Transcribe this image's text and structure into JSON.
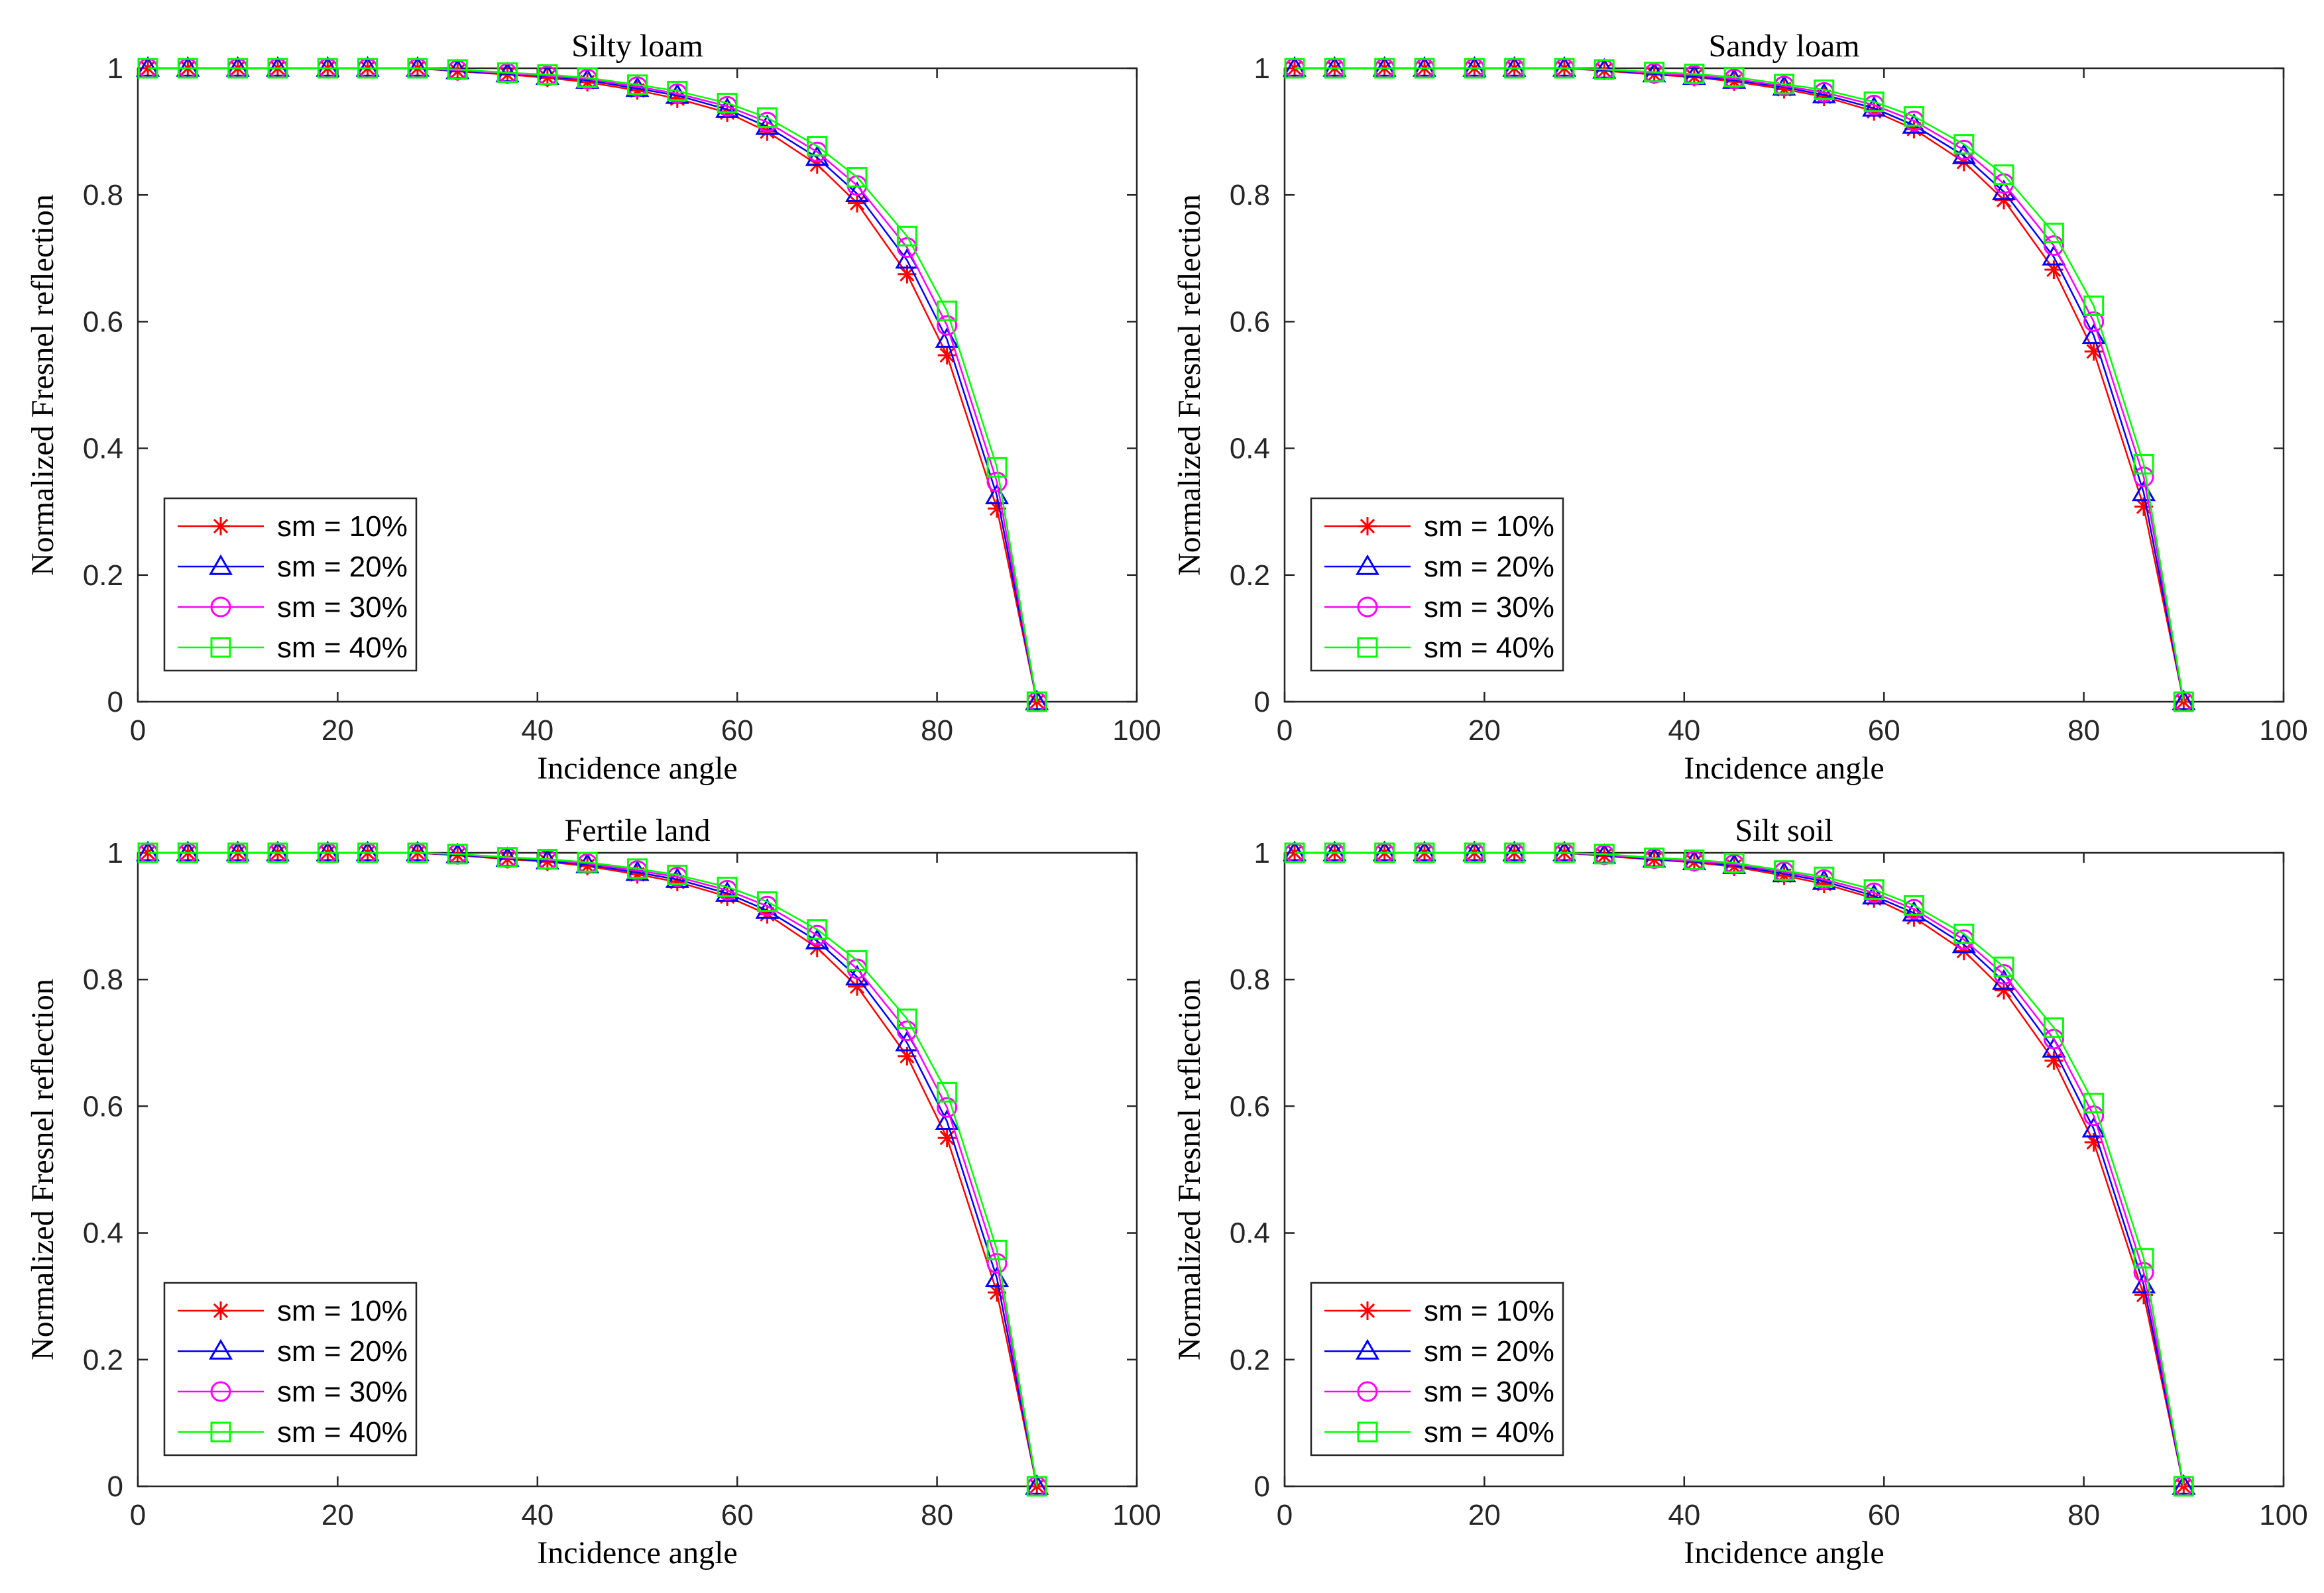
{
  "chart_data": [
    {
      "type": "line",
      "title": "Silty loam",
      "xlabel": "Incidence angle",
      "ylabel": "Normalized Fresnel reflection",
      "xlim": [
        0,
        100
      ],
      "ylim": [
        0,
        1
      ],
      "xticks": [
        "0",
        "20",
        "40",
        "60",
        "80",
        "100"
      ],
      "yticks": [
        "0",
        "0.2",
        "0.4",
        "0.6",
        "0.8",
        "1"
      ],
      "legend_position": "bottom-left",
      "x": [
        1,
        5,
        10,
        14,
        19,
        23,
        28,
        32,
        37,
        41,
        45,
        50,
        54,
        59,
        63,
        68,
        72,
        77,
        81,
        86,
        90
      ],
      "series": [
        {
          "name": "sm = 10%",
          "values": [
            1.0,
            1.0,
            1.0,
            1.0,
            1.0,
            1.0,
            1.0,
            0.995,
            0.99,
            0.985,
            0.978,
            0.965,
            0.952,
            0.93,
            0.9,
            0.848,
            0.787,
            0.675,
            0.547,
            0.305,
            0.0
          ]
        },
        {
          "name": "sm = 20%",
          "values": [
            1.0,
            1.0,
            1.0,
            1.0,
            1.0,
            1.0,
            1.0,
            0.996,
            0.991,
            0.987,
            0.981,
            0.968,
            0.957,
            0.935,
            0.908,
            0.859,
            0.802,
            0.697,
            0.572,
            0.325,
            0.0
          ]
        },
        {
          "name": "sm = 30%",
          "values": [
            1.0,
            1.0,
            1.0,
            1.0,
            1.0,
            1.0,
            1.0,
            0.997,
            0.992,
            0.988,
            0.983,
            0.971,
            0.96,
            0.94,
            0.915,
            0.868,
            0.815,
            0.717,
            0.594,
            0.347,
            0.0
          ]
        },
        {
          "name": "sm = 40%",
          "values": [
            1.0,
            1.0,
            1.0,
            1.0,
            1.0,
            1.0,
            1.0,
            0.998,
            0.993,
            0.99,
            0.985,
            0.974,
            0.964,
            0.945,
            0.922,
            0.877,
            0.828,
            0.735,
            0.617,
            0.37,
            0.0
          ]
        }
      ]
    },
    {
      "type": "line",
      "title": "Sandy loam",
      "xlabel": "Incidence angle",
      "ylabel": "Normalized Fresnel reflection",
      "xlim": [
        0,
        100
      ],
      "ylim": [
        0,
        1
      ],
      "xticks": [
        "0",
        "20",
        "40",
        "60",
        "80",
        "100"
      ],
      "yticks": [
        "0",
        "0.2",
        "0.4",
        "0.6",
        "0.8",
        "1"
      ],
      "legend_position": "bottom-left",
      "x": [
        1,
        5,
        10,
        14,
        19,
        23,
        28,
        32,
        37,
        41,
        45,
        50,
        54,
        59,
        63,
        68,
        72,
        77,
        81,
        86,
        90
      ],
      "series": [
        {
          "name": "sm = 10%",
          "values": [
            1.0,
            1.0,
            1.0,
            1.0,
            1.0,
            1.0,
            1.0,
            0.996,
            0.99,
            0.986,
            0.979,
            0.967,
            0.955,
            0.932,
            0.904,
            0.852,
            0.792,
            0.682,
            0.553,
            0.308,
            0.0
          ]
        },
        {
          "name": "sm = 20%",
          "values": [
            1.0,
            1.0,
            1.0,
            1.0,
            1.0,
            1.0,
            1.0,
            0.997,
            0.991,
            0.987,
            0.981,
            0.97,
            0.958,
            0.937,
            0.91,
            0.862,
            0.805,
            0.702,
            0.578,
            0.33,
            0.0
          ]
        },
        {
          "name": "sm = 30%",
          "values": [
            1.0,
            1.0,
            1.0,
            1.0,
            1.0,
            1.0,
            1.0,
            0.998,
            0.992,
            0.989,
            0.983,
            0.972,
            0.962,
            0.942,
            0.917,
            0.871,
            0.818,
            0.72,
            0.6,
            0.355,
            0.0
          ]
        },
        {
          "name": "sm = 40%",
          "values": [
            1.0,
            1.0,
            1.0,
            1.0,
            1.0,
            1.0,
            1.0,
            0.998,
            0.994,
            0.991,
            0.986,
            0.975,
            0.966,
            0.947,
            0.924,
            0.88,
            0.832,
            0.74,
            0.625,
            0.375,
            0.0
          ]
        }
      ]
    },
    {
      "type": "line",
      "title": "Fertile land",
      "xlabel": "Incidence angle",
      "ylabel": "Normalized Fresnel reflection",
      "xlim": [
        0,
        100
      ],
      "ylim": [
        0,
        1
      ],
      "xticks": [
        "0",
        "20",
        "40",
        "60",
        "80",
        "100"
      ],
      "yticks": [
        "0",
        "0.2",
        "0.4",
        "0.6",
        "0.8",
        "1"
      ],
      "legend_position": "bottom-left",
      "x": [
        1,
        5,
        10,
        14,
        19,
        23,
        28,
        32,
        37,
        41,
        45,
        50,
        54,
        59,
        63,
        68,
        72,
        77,
        81,
        86,
        90
      ],
      "series": [
        {
          "name": "sm = 10%",
          "values": [
            1.0,
            1.0,
            1.0,
            1.0,
            1.0,
            1.0,
            1.0,
            0.996,
            0.99,
            0.986,
            0.979,
            0.966,
            0.954,
            0.931,
            0.903,
            0.85,
            0.789,
            0.679,
            0.55,
            0.306,
            0.0
          ]
        },
        {
          "name": "sm = 20%",
          "values": [
            1.0,
            1.0,
            1.0,
            1.0,
            1.0,
            1.0,
            1.0,
            0.997,
            0.991,
            0.987,
            0.981,
            0.969,
            0.958,
            0.936,
            0.909,
            0.861,
            0.804,
            0.7,
            0.576,
            0.328,
            0.0
          ]
        },
        {
          "name": "sm = 30%",
          "values": [
            1.0,
            1.0,
            1.0,
            1.0,
            1.0,
            1.0,
            1.0,
            0.998,
            0.992,
            0.989,
            0.983,
            0.972,
            0.962,
            0.941,
            0.916,
            0.87,
            0.817,
            0.719,
            0.598,
            0.352,
            0.0
          ]
        },
        {
          "name": "sm = 40%",
          "values": [
            1.0,
            1.0,
            1.0,
            1.0,
            1.0,
            1.0,
            1.0,
            0.998,
            0.993,
            0.99,
            0.985,
            0.975,
            0.965,
            0.946,
            0.923,
            0.879,
            0.83,
            0.738,
            0.622,
            0.373,
            0.0
          ]
        }
      ]
    },
    {
      "type": "line",
      "title": "Silt soil",
      "xlabel": "Incidence angle",
      "ylabel": "Normalized Fresnel reflection",
      "xlim": [
        0,
        100
      ],
      "ylim": [
        0,
        1
      ],
      "xticks": [
        "0",
        "20",
        "40",
        "60",
        "80",
        "100"
      ],
      "yticks": [
        "0",
        "0.2",
        "0.4",
        "0.6",
        "0.8",
        "1"
      ],
      "legend_position": "bottom-left",
      "x": [
        1,
        5,
        10,
        14,
        19,
        23,
        28,
        32,
        37,
        41,
        45,
        50,
        54,
        59,
        63,
        68,
        72,
        77,
        81,
        86,
        90
      ],
      "series": [
        {
          "name": "sm = 10%",
          "values": [
            1.0,
            1.0,
            1.0,
            1.0,
            1.0,
            1.0,
            1.0,
            0.995,
            0.989,
            0.985,
            0.978,
            0.964,
            0.951,
            0.928,
            0.898,
            0.845,
            0.783,
            0.672,
            0.543,
            0.302,
            0.0
          ]
        },
        {
          "name": "sm = 20%",
          "values": [
            1.0,
            1.0,
            1.0,
            1.0,
            1.0,
            1.0,
            1.0,
            0.996,
            0.99,
            0.986,
            0.98,
            0.967,
            0.955,
            0.932,
            0.905,
            0.855,
            0.797,
            0.69,
            0.564,
            0.318,
            0.0
          ]
        },
        {
          "name": "sm = 30%",
          "values": [
            1.0,
            1.0,
            1.0,
            1.0,
            1.0,
            1.0,
            1.0,
            0.997,
            0.991,
            0.987,
            0.982,
            0.97,
            0.958,
            0.937,
            0.911,
            0.863,
            0.808,
            0.706,
            0.585,
            0.338,
            0.0
          ]
        },
        {
          "name": "sm = 40%",
          "values": [
            1.0,
            1.0,
            1.0,
            1.0,
            1.0,
            1.0,
            1.0,
            0.998,
            0.992,
            0.989,
            0.984,
            0.972,
            0.962,
            0.942,
            0.917,
            0.872,
            0.82,
            0.724,
            0.605,
            0.36,
            0.0
          ]
        }
      ]
    }
  ],
  "style": {
    "series_colors": [
      "#ff0000",
      "#0000ff",
      "#ff00ff",
      "#00ff00"
    ],
    "series_markers": [
      "asterisk",
      "triangle",
      "circle",
      "square"
    ],
    "axis_color": "#262626",
    "background": "#ffffff"
  }
}
